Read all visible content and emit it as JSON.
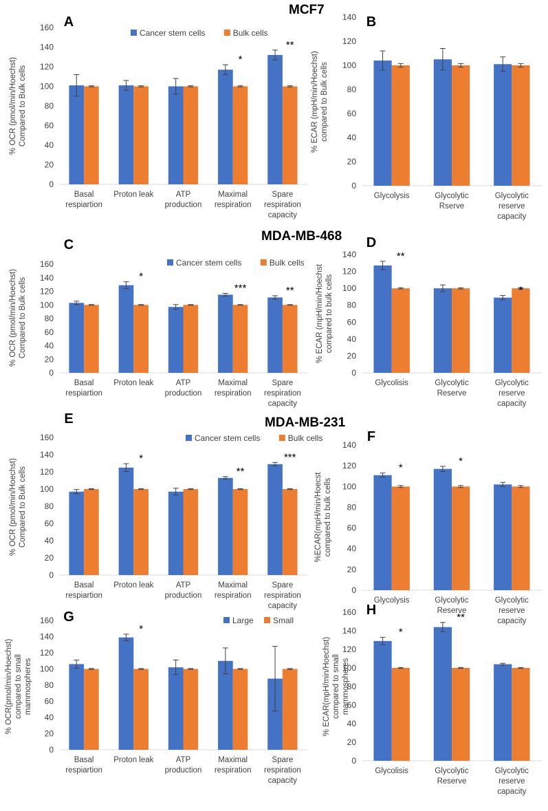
{
  "figure": {
    "cell_lines": [
      "MCF7",
      "MDA-MB-468",
      "MDA-MB-231"
    ]
  },
  "colors": {
    "series1": "#4472C4",
    "series2": "#ED7D31",
    "axis": "#D9D9D9",
    "error": "#404040"
  },
  "chart_data": [
    {
      "id": "A",
      "type": "bar",
      "cell_line": "MCF7",
      "ylabel": [
        "% OCR (pmol/min/Hoechst)",
        "Compared to Bulk cells"
      ],
      "ylim": [
        0,
        160
      ],
      "yticks": [
        0,
        20,
        40,
        60,
        80,
        100,
        120,
        140,
        160
      ],
      "categories": [
        [
          "Basal",
          "respiartion"
        ],
        [
          "Proton leak"
        ],
        [
          "ATP",
          "production"
        ],
        [
          "Maximal",
          "respiration"
        ],
        [
          "Spare",
          "respiration",
          "capacity"
        ]
      ],
      "series": [
        {
          "name": "Cancer stem cells",
          "values": [
            101,
            101,
            100,
            117,
            132
          ],
          "errors": [
            11,
            5,
            8,
            5,
            5
          ]
        },
        {
          "name": "Bulk cells",
          "values": [
            100,
            100,
            100,
            100,
            100
          ],
          "errors": [
            0.6,
            0.6,
            0.6,
            0.6,
            0.6
          ]
        }
      ],
      "annotations": [
        "",
        "",
        "",
        "*",
        "**"
      ]
    },
    {
      "id": "B",
      "type": "bar",
      "cell_line": "MCF7",
      "ylabel": [
        "% ECAR (mpH/min/Hoechst)",
        "compared to Bulk cells"
      ],
      "ylim": [
        0,
        140
      ],
      "yticks": [
        0,
        20,
        40,
        60,
        80,
        100,
        120,
        140
      ],
      "categories": [
        [
          "Glycolysis"
        ],
        [
          "Glycolytic",
          "Rserve"
        ],
        [
          "Glycolytic",
          "reserve",
          "capacity"
        ]
      ],
      "series": [
        {
          "name": "Cancer stem cells",
          "values": [
            104,
            105,
            101
          ],
          "errors": [
            8,
            9,
            6
          ]
        },
        {
          "name": "Bulk cells",
          "values": [
            100,
            100,
            100
          ],
          "errors": [
            1.5,
            1.5,
            1.5
          ]
        }
      ],
      "annotations": [
        "",
        "",
        ""
      ]
    },
    {
      "id": "C",
      "type": "bar",
      "cell_line": "MDA-MB-468",
      "ylabel": [
        "% OCR (pmol/min/Hoechst)",
        "Compared to Bulk cells"
      ],
      "ylim": [
        0,
        160
      ],
      "yticks": [
        0,
        20,
        40,
        60,
        80,
        100,
        120,
        140,
        160
      ],
      "categories": [
        [
          "Basal",
          "respiartion"
        ],
        [
          "Proton leak"
        ],
        [
          "ATP",
          "production"
        ],
        [
          "Maximal",
          "respiration"
        ],
        [
          "Spare",
          "respiration",
          "capacity"
        ]
      ],
      "series": [
        {
          "name": "Cancer stem cells",
          "values": [
            103,
            129,
            97,
            115,
            111
          ],
          "errors": [
            2.5,
            5,
            3.5,
            2,
            2.5
          ]
        },
        {
          "name": "Bulk cells",
          "values": [
            100,
            100,
            100,
            100,
            100
          ],
          "errors": [
            0.5,
            0.5,
            0.5,
            0.5,
            0.5
          ]
        }
      ],
      "annotations": [
        "",
        "*",
        "",
        "***",
        "**"
      ]
    },
    {
      "id": "D",
      "type": "bar",
      "cell_line": "MDA-MB-468",
      "ylabel": [
        "% ECAR (mpH/min/Hoechst",
        "compared to bulk cells"
      ],
      "ylim": [
        0,
        140
      ],
      "yticks": [
        0,
        20,
        40,
        60,
        80,
        100,
        120,
        140
      ],
      "categories": [
        [
          "Glycolisis"
        ],
        [
          "Glycolytic",
          "Reserve"
        ],
        [
          "Glycolytic",
          "reserve",
          "capacity"
        ]
      ],
      "series": [
        {
          "name": "Cancer stem cells",
          "values": [
            127,
            100,
            89
          ],
          "errors": [
            5,
            4,
            2.5
          ]
        },
        {
          "name": "Bulk cells",
          "values": [
            100,
            100,
            100
          ],
          "errors": [
            0.7,
            0.7,
            0.7
          ]
        }
      ],
      "annotations": [
        "**",
        "",
        "*"
      ]
    },
    {
      "id": "E",
      "type": "bar",
      "cell_line": "MDA-MB-231",
      "ylabel": [
        "% OCR (pmol/min/Hoechst)",
        "Compared to Bulk cells"
      ],
      "ylim": [
        0,
        160
      ],
      "yticks": [
        0,
        20,
        40,
        60,
        80,
        100,
        120,
        140,
        160
      ],
      "categories": [
        [
          "Basal",
          "respiartion"
        ],
        [
          "Proton leak"
        ],
        [
          "ATP",
          "production"
        ],
        [
          "Maximal",
          "respiration"
        ],
        [
          "Spare",
          "respiration",
          "capacity"
        ]
      ],
      "series": [
        {
          "name": "Cancer stem cells",
          "values": [
            97,
            125,
            97,
            113,
            129
          ],
          "errors": [
            2.5,
            4.5,
            4,
            1.5,
            2
          ]
        },
        {
          "name": "Bulk cells",
          "values": [
            100,
            100,
            100,
            100,
            100
          ],
          "errors": [
            0.5,
            0.5,
            0.5,
            0.5,
            0.5
          ]
        }
      ],
      "annotations": [
        "",
        "*",
        "",
        "**",
        "***"
      ]
    },
    {
      "id": "F",
      "type": "bar",
      "cell_line": "MDA-MB-231",
      "ylabel": [
        "%ECAR(mpH/min/Hoecst",
        "compared to bulk cells"
      ],
      "ylim": [
        0,
        140
      ],
      "yticks": [
        0,
        20,
        40,
        60,
        80,
        100,
        120,
        140
      ],
      "categories": [
        [
          "Glycolysis"
        ],
        [
          "Glycolytic",
          "Reserve"
        ],
        [
          "Glycolytic",
          "reserve",
          "capacity"
        ]
      ],
      "series": [
        {
          "name": "Cancer stem cells",
          "values": [
            111,
            117,
            102
          ],
          "errors": [
            2,
            2.5,
            2
          ]
        },
        {
          "name": "Bulk cells",
          "values": [
            100,
            100,
            100
          ],
          "errors": [
            1,
            1,
            1
          ]
        }
      ],
      "annotations": [
        "*",
        "*",
        ""
      ]
    },
    {
      "id": "G",
      "type": "bar",
      "cell_line": "",
      "ylabel": [
        "% OCR(pmol/min/Hoechst)",
        "compared to small",
        "mammospheres"
      ],
      "ylim": [
        0,
        160
      ],
      "yticks": [
        0,
        20,
        40,
        60,
        80,
        100,
        120,
        140,
        160
      ],
      "categories": [
        [
          "Basal",
          "respiartion"
        ],
        [
          "Proton leak"
        ],
        [
          "ATP",
          "production"
        ],
        [
          "Maximal",
          "respiration"
        ],
        [
          "Spare",
          "respiration",
          "capacity"
        ]
      ],
      "series": [
        {
          "name": "Large",
          "values": [
            106,
            139,
            102,
            110,
            88
          ],
          "errors": [
            5,
            4,
            9,
            16,
            40
          ]
        },
        {
          "name": "Small",
          "values": [
            100,
            100,
            100,
            100,
            100
          ],
          "errors": [
            0.5,
            0.5,
            0.5,
            0.5,
            0.5
          ]
        }
      ],
      "annotations": [
        "",
        "*",
        "",
        "",
        ""
      ]
    },
    {
      "id": "H",
      "type": "bar",
      "cell_line": "",
      "ylabel": [
        "% ECAR(mpH/min/Hoechst)",
        "compared to small",
        "mammospheres"
      ],
      "ylim": [
        0,
        160
      ],
      "yticks": [
        0,
        20,
        40,
        60,
        80,
        100,
        120,
        140,
        160
      ],
      "categories": [
        [
          "Glycolisis"
        ],
        [
          "Glycolytic",
          "Reserve"
        ],
        [
          "Glycolytic",
          "reserve",
          "capacity"
        ]
      ],
      "series": [
        {
          "name": "Large",
          "values": [
            129,
            144,
            104
          ],
          "errors": [
            4,
            5,
            1
          ]
        },
        {
          "name": "Small",
          "values": [
            100,
            100,
            100
          ],
          "errors": [
            0.5,
            0.5,
            0.5
          ]
        }
      ],
      "annotations": [
        "*",
        "**",
        ""
      ]
    }
  ]
}
